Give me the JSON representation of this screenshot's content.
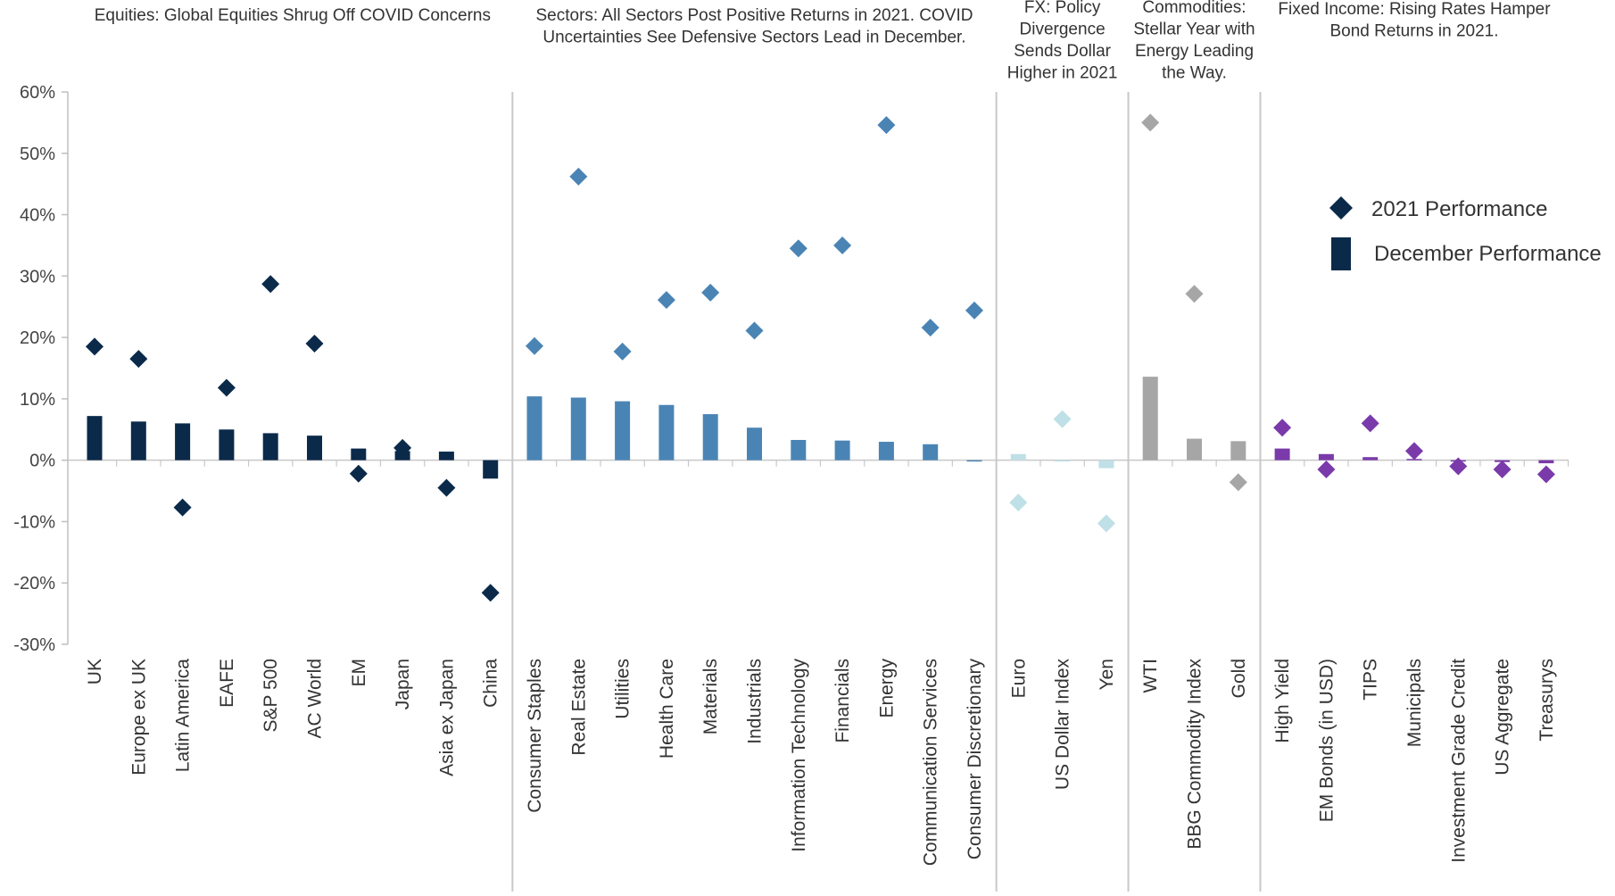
{
  "chart_data": {
    "type": "bar",
    "ylim": [
      -30,
      60
    ],
    "yticks": [
      -30,
      -20,
      -10,
      0,
      10,
      20,
      30,
      40,
      50,
      60
    ],
    "ytick_labels": [
      "-30%",
      "-20%",
      "-10%",
      "0%",
      "10%",
      "20%",
      "30%",
      "40%",
      "50%",
      "60%"
    ],
    "legend": {
      "position": "right",
      "items": [
        {
          "name": "2021 Performance",
          "marker": "diamond",
          "color": "#0b2a4a"
        },
        {
          "name": "December Performance",
          "marker": "bar",
          "color": "#0b2a4a"
        }
      ]
    },
    "sections": [
      {
        "title_lines": [
          "Equities: Global Equities Shrug Off COVID Concerns"
        ],
        "color": "#0b2a4a",
        "categories": [
          "UK",
          "Europe ex UK",
          "Latin America",
          "EAFE",
          "S&P 500",
          "AC World",
          "EM",
          "Japan",
          "Asia ex Japan",
          "China"
        ],
        "december": [
          7.2,
          6.3,
          6.0,
          5.0,
          4.4,
          4.0,
          1.9,
          1.5,
          1.4,
          -3.0
        ],
        "year_2021": [
          18.5,
          16.5,
          -7.7,
          11.8,
          28.7,
          19.0,
          -2.2,
          2.0,
          -4.5,
          -21.6
        ]
      },
      {
        "title_lines": [
          "Sectors: All Sectors Post Positive Returns in 2021. COVID",
          "Uncertainties See Defensive Sectors Lead in December."
        ],
        "color": "#4a84b5",
        "categories": [
          "Consumer Staples",
          "Real Estate",
          "Utilities",
          "Health Care",
          "Materials",
          "Industrials",
          "Information Technology",
          "Financials",
          "Energy",
          "Communication Services",
          "Consumer Discretionary"
        ],
        "december": [
          10.4,
          10.2,
          9.6,
          9.0,
          7.5,
          5.3,
          3.3,
          3.2,
          3.0,
          2.6,
          -0.2
        ],
        "year_2021": [
          18.6,
          46.2,
          17.7,
          26.1,
          27.3,
          21.1,
          34.5,
          35.0,
          54.6,
          21.6,
          24.4
        ]
      },
      {
        "title_lines": [
          "FX: Policy",
          "Divergence",
          "Sends Dollar",
          "Higher in 2021"
        ],
        "color": "#bfe0e6",
        "categories": [
          "Euro",
          "US Dollar Index",
          "Yen"
        ],
        "december": [
          1.0,
          -0.2,
          -1.3
        ],
        "year_2021": [
          -6.9,
          6.7,
          -10.3
        ]
      },
      {
        "title_lines": [
          "Commodities:",
          "Stellar Year with",
          "Energy Leading",
          "the Way."
        ],
        "color": "#a6a6a6",
        "categories": [
          "WTI",
          "BBG Commodity Index",
          "Gold"
        ],
        "december": [
          13.6,
          3.5,
          3.1
        ],
        "year_2021": [
          55.0,
          27.1,
          -3.6
        ]
      },
      {
        "title_lines": [
          "Fixed Income: Rising Rates Hamper",
          "Bond Returns in 2021."
        ],
        "color": "#7a3aaa",
        "categories": [
          "High Yield",
          "EM Bonds (in USD)",
          "TIPS",
          "Municipals",
          "Investment Grade Credit",
          "US Aggregate",
          "Treasurys"
        ],
        "december": [
          1.9,
          1.0,
          0.5,
          0.2,
          -0.2,
          -0.3,
          -0.5
        ],
        "year_2021": [
          5.3,
          -1.5,
          6.0,
          1.5,
          -1.0,
          -1.5,
          -2.3
        ]
      }
    ]
  }
}
